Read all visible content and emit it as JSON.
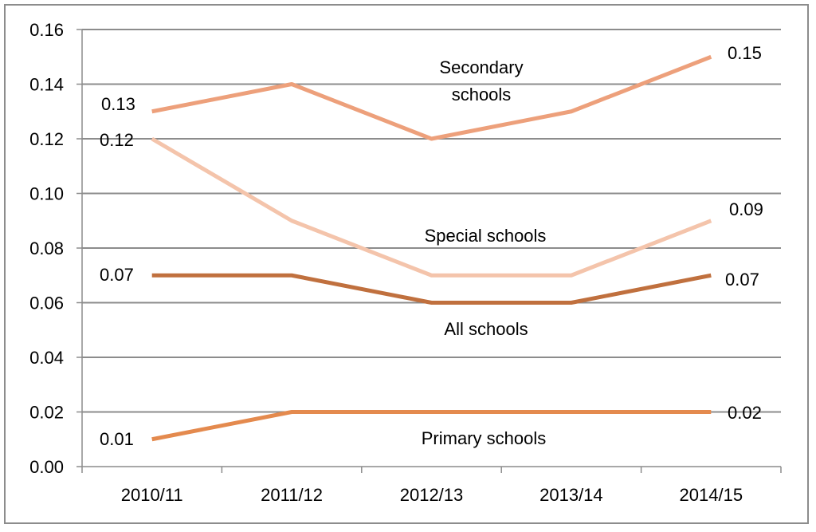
{
  "chart_data": {
    "type": "line",
    "categories": [
      "2010/11",
      "2011/12",
      "2012/13",
      "2013/14",
      "2014/15"
    ],
    "ylim": [
      0,
      0.16
    ],
    "yticks": [
      0.0,
      0.02,
      0.04,
      0.06,
      0.08,
      0.1,
      0.12,
      0.14,
      0.16
    ],
    "ytick_labels": [
      "0.00",
      "0.02",
      "0.04",
      "0.06",
      "0.08",
      "0.10",
      "0.12",
      "0.14",
      "0.16"
    ],
    "grid": true,
    "series": [
      {
        "key": "secondary",
        "name_lines": [
          "Secondary",
          "schools"
        ],
        "values": [
          0.13,
          0.14,
          0.12,
          0.13,
          0.15
        ],
        "start_label": "0.13",
        "end_label": "0.15",
        "color": "#eda07b"
      },
      {
        "key": "special",
        "name_lines": [
          "Special schools"
        ],
        "values": [
          0.12,
          0.09,
          0.07,
          0.07,
          0.09
        ],
        "start_label": "0.12",
        "end_label": "0.09",
        "color": "#f4c4ab"
      },
      {
        "key": "all",
        "name_lines": [
          "All schools"
        ],
        "values": [
          0.07,
          0.07,
          0.06,
          0.06,
          0.07
        ],
        "start_label": "0.07",
        "end_label": "0.07",
        "color": "#c0703e"
      },
      {
        "key": "primary",
        "name_lines": [
          "Primary schools"
        ],
        "values": [
          0.01,
          0.02,
          0.02,
          0.02,
          0.02
        ],
        "start_label": "0.01",
        "end_label": "0.02",
        "color": "#e48a4e"
      }
    ]
  }
}
